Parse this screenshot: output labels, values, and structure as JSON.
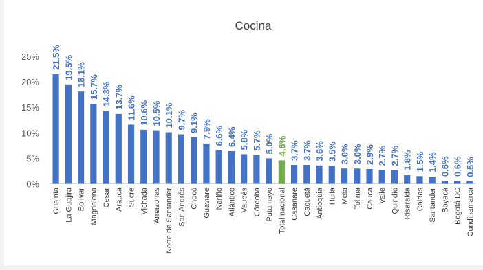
{
  "chart_data": {
    "type": "bar",
    "title": "Cocina",
    "xlabel": "",
    "ylabel": "",
    "ylim": [
      0,
      0.25
    ],
    "yticks": [
      "0%",
      "5%",
      "10%",
      "15%",
      "20%",
      "25%"
    ],
    "grid": false,
    "legend": "none",
    "colors": {
      "bar": "#4472c4",
      "highlight": "#70ad47",
      "label": "#4472c4",
      "highlight_label": "#70ad47"
    },
    "categories": [
      "Guainía",
      "La Guajira",
      "Bolívar",
      "Magdalena",
      "Cesar",
      "Arauca",
      "Sucre",
      "Vichada",
      "Amazonas",
      "Norte de Santander",
      "San Andrés",
      "Chocó",
      "Guaviare",
      "Nariño",
      "Atlántico",
      "Vaupés",
      "Córdoba",
      "Putumayo",
      "Total nacional",
      "Casanare",
      "Caquetá",
      "Antioquia",
      "Huila",
      "Meta",
      "Tolima",
      "Cauca",
      "Valle",
      "Quindío",
      "Risaralda",
      "Caldas",
      "Santander",
      "Boyacá",
      "Bogotá DC",
      "Cundinamarca"
    ],
    "values": [
      0.215,
      0.195,
      0.181,
      0.157,
      0.143,
      0.137,
      0.116,
      0.106,
      0.105,
      0.101,
      0.097,
      0.091,
      0.079,
      0.066,
      0.064,
      0.058,
      0.057,
      0.05,
      0.046,
      0.037,
      0.037,
      0.036,
      0.035,
      0.03,
      0.03,
      0.029,
      0.027,
      0.027,
      0.018,
      0.015,
      0.014,
      0.006,
      0.006,
      0.005
    ],
    "labels": [
      "21.5%",
      "19.5%",
      "18.1%",
      "15.7%",
      "14.3%",
      "13.7%",
      "11.6%",
      "10.6%",
      "10.5%",
      "10.1%",
      "9.7%",
      "9.1%",
      "7.9%",
      "6.6%",
      "6.4%",
      "5.8%",
      "5.7%",
      "5.0%",
      "4.6%",
      "3.7%",
      "3.7%",
      "3.6%",
      "3.5%",
      "3.0%",
      "3.0%",
      "2.9%",
      "2.7%",
      "2.7%",
      "1.8%",
      "1.5%",
      "1.4%",
      "0.6%",
      "0.6%",
      "0.5%"
    ],
    "highlight_category": "Total nacional"
  }
}
